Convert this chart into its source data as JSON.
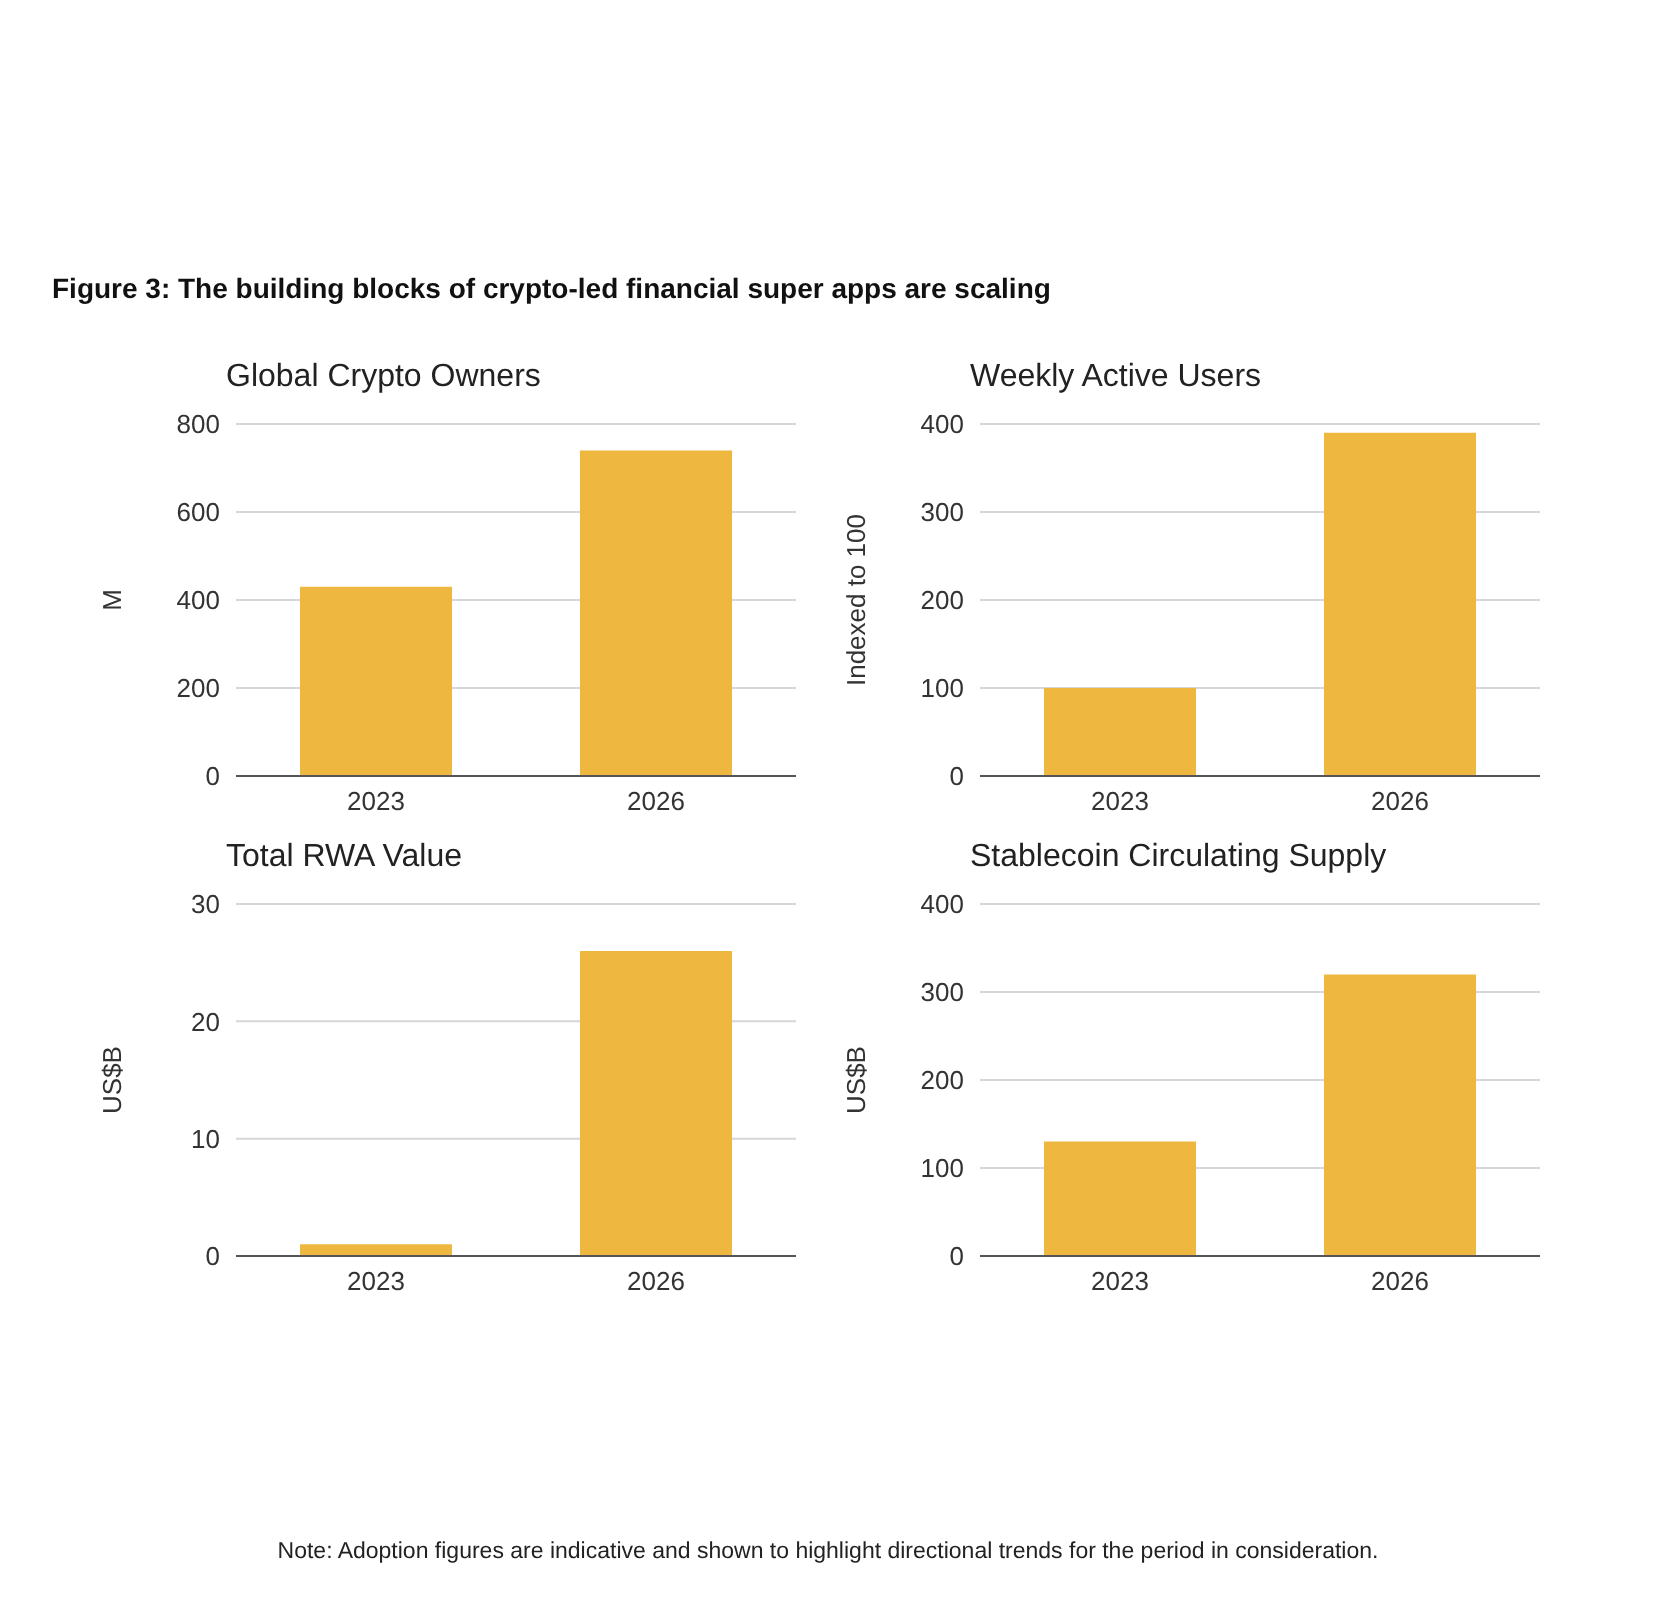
{
  "chart_data": [
    {
      "type": "bar",
      "title": "Global Crypto Owners",
      "ylabel": "M",
      "categories": [
        "2023",
        "2026"
      ],
      "values": [
        430,
        740
      ],
      "color": "#eeb840",
      "ylim": [
        0,
        800
      ],
      "yticks": [
        0,
        200,
        400,
        600,
        800
      ],
      "grid": "y",
      "annotations": [
        "Figure 3: The building blocks of crypto-led financial super apps are scaling",
        "Note: Adoption figures are indicative and shown to highlight directional trends for the period in consideration."
      ]
    },
    {
      "type": "bar",
      "title": "Weekly Active Users",
      "ylabel": "Indexed to 100",
      "categories": [
        "2023",
        "2026"
      ],
      "values": [
        100,
        390
      ],
      "color": "#eeb840",
      "ylim": [
        0,
        400
      ],
      "yticks": [
        0,
        100,
        200,
        300,
        400
      ],
      "grid": "y"
    },
    {
      "type": "bar",
      "title": "Total RWA Value",
      "ylabel": "US$B",
      "categories": [
        "2023",
        "2026"
      ],
      "values": [
        1,
        26
      ],
      "color": "#eeb840",
      "ylim": [
        0,
        30
      ],
      "yticks": [
        0,
        10,
        20,
        30
      ],
      "grid": "y"
    },
    {
      "type": "bar",
      "title": "Stablecoin Circulating Supply",
      "ylabel": "US$B",
      "categories": [
        "2023",
        "2026"
      ],
      "values": [
        130,
        320
      ],
      "color": "#eeb840",
      "ylim": [
        0,
        400
      ],
      "yticks": [
        0,
        100,
        200,
        300,
        400
      ],
      "grid": "y"
    }
  ]
}
